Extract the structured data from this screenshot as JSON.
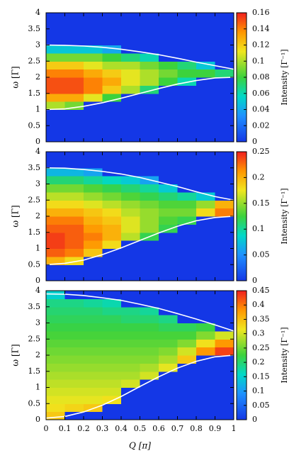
{
  "chart_data": [
    {
      "type": "heatmap",
      "x": [
        0.05,
        0.15,
        0.25,
        0.35,
        0.45,
        0.55,
        0.65,
        0.75,
        0.85,
        0.95
      ],
      "y": [
        0.125,
        0.375,
        0.625,
        0.875,
        1.125,
        1.375,
        1.625,
        1.875,
        2.125,
        2.375,
        2.625,
        2.875,
        3.125,
        3.375,
        3.625,
        3.875
      ],
      "values": [
        [
          0,
          0,
          0,
          0,
          0,
          0,
          0,
          0,
          0,
          0
        ],
        [
          0,
          0,
          0,
          0,
          0,
          0,
          0,
          0,
          0,
          0
        ],
        [
          0,
          0,
          0,
          0,
          0,
          0,
          0,
          0,
          0,
          0
        ],
        [
          0,
          0,
          0,
          0,
          0,
          0,
          0,
          0,
          0,
          0
        ],
        [
          0.1,
          0.09,
          0,
          0,
          0,
          0,
          0,
          0,
          0,
          0
        ],
        [
          0.13,
          0.13,
          0.11,
          0.08,
          0,
          0,
          0,
          0,
          0,
          0
        ],
        [
          0.15,
          0.15,
          0.14,
          0.12,
          0.1,
          0.07,
          0,
          0,
          0,
          0
        ],
        [
          0.15,
          0.15,
          0.14,
          0.13,
          0.11,
          0.1,
          0.08,
          0.06,
          0,
          0
        ],
        [
          0.14,
          0.14,
          0.13,
          0.12,
          0.11,
          0.1,
          0.09,
          0.08,
          0.08,
          0.07
        ],
        [
          0.12,
          0.12,
          0.11,
          0.1,
          0.1,
          0.09,
          0.08,
          0.07,
          0.05,
          0
        ],
        [
          0.09,
          0.09,
          0.09,
          0.08,
          0.07,
          0.06,
          0,
          0,
          0,
          0
        ],
        [
          0.05,
          0.05,
          0.05,
          0.04,
          0,
          0,
          0,
          0,
          0,
          0
        ],
        [
          0,
          0,
          0,
          0,
          0,
          0,
          0,
          0,
          0,
          0
        ],
        [
          0,
          0,
          0,
          0,
          0,
          0,
          0,
          0,
          0,
          0
        ],
        [
          0,
          0,
          0,
          0,
          0,
          0,
          0,
          0,
          0,
          0
        ],
        [
          0,
          0,
          0,
          0,
          0,
          0,
          0,
          0,
          0,
          0
        ]
      ],
      "xlim": [
        0,
        1
      ],
      "ylim": [
        0,
        4
      ],
      "yticks": [
        0,
        0.5,
        1,
        1.5,
        2,
        2.5,
        3,
        3.5,
        4
      ],
      "ylabel": "ω [Γ]",
      "clim": [
        0,
        0.16
      ],
      "cticks": [
        0,
        0.02,
        0.04,
        0.06,
        0.08,
        0.1,
        0.12,
        0.14,
        0.16
      ],
      "colorbar_label": "Intensity [Γ⁻¹]",
      "line_x": [
        0,
        0.1,
        0.2,
        0.3,
        0.4,
        0.5,
        0.6,
        0.7,
        0.8,
        0.9,
        1
      ],
      "lines": [
        {
          "color": "#ffffff",
          "values": [
            1,
            1.02,
            1.1,
            1.21,
            1.35,
            1.5,
            1.65,
            1.79,
            1.9,
            1.98,
            2
          ]
        },
        {
          "color": "#ffffff",
          "values": [
            3,
            2.99,
            2.97,
            2.93,
            2.87,
            2.79,
            2.7,
            2.59,
            2.47,
            2.36,
            2.25
          ]
        }
      ]
    },
    {
      "type": "heatmap",
      "x": [
        0.05,
        0.15,
        0.25,
        0.35,
        0.45,
        0.55,
        0.65,
        0.75,
        0.85,
        0.95
      ],
      "y": [
        0.125,
        0.375,
        0.625,
        0.875,
        1.125,
        1.375,
        1.625,
        1.875,
        2.125,
        2.375,
        2.625,
        2.875,
        3.125,
        3.375,
        3.625,
        3.875
      ],
      "values": [
        [
          0,
          0,
          0,
          0,
          0,
          0,
          0,
          0,
          0,
          0
        ],
        [
          0,
          0,
          0,
          0,
          0,
          0,
          0,
          0,
          0,
          0
        ],
        [
          0.2,
          0.18,
          0,
          0,
          0,
          0,
          0,
          0,
          0,
          0
        ],
        [
          0.23,
          0.22,
          0.19,
          0,
          0,
          0,
          0,
          0,
          0,
          0
        ],
        [
          0.24,
          0.23,
          0.21,
          0.18,
          0,
          0,
          0,
          0,
          0,
          0
        ],
        [
          0.24,
          0.23,
          0.22,
          0.2,
          0.16,
          0.12,
          0,
          0,
          0,
          0
        ],
        [
          0.23,
          0.23,
          0.21,
          0.2,
          0.17,
          0.15,
          0.12,
          0,
          0,
          0
        ],
        [
          0.22,
          0.22,
          0.2,
          0.19,
          0.17,
          0.15,
          0.13,
          0.12,
          0,
          0
        ],
        [
          0.2,
          0.2,
          0.19,
          0.18,
          0.16,
          0.15,
          0.14,
          0.14,
          0.18,
          0.22
        ],
        [
          0.18,
          0.18,
          0.17,
          0.16,
          0.15,
          0.14,
          0.13,
          0.13,
          0.15,
          0.2
        ],
        [
          0.16,
          0.16,
          0.15,
          0.14,
          0.13,
          0.12,
          0.11,
          0.1,
          0.08,
          0
        ],
        [
          0.14,
          0.14,
          0.13,
          0.12,
          0.11,
          0.1,
          0.08,
          0,
          0,
          0
        ],
        [
          0.11,
          0.11,
          0.1,
          0.09,
          0.08,
          0.06,
          0,
          0,
          0,
          0
        ],
        [
          0.07,
          0.07,
          0.06,
          0,
          0,
          0,
          0,
          0,
          0,
          0
        ],
        [
          0,
          0,
          0,
          0,
          0,
          0,
          0,
          0,
          0,
          0
        ],
        [
          0,
          0,
          0,
          0,
          0,
          0,
          0,
          0,
          0,
          0
        ]
      ],
      "xlim": [
        0,
        1
      ],
      "ylim": [
        0,
        4
      ],
      "yticks": [
        0,
        0.5,
        1,
        1.5,
        2,
        2.5,
        3,
        3.5,
        4
      ],
      "ylabel": "ω [Γ]",
      "clim": [
        0,
        0.25
      ],
      "cticks": [
        0,
        0.05,
        0.1,
        0.15,
        0.2,
        0.25
      ],
      "colorbar_label": "Intensity [Γ⁻¹]",
      "line_x": [
        0,
        0.1,
        0.2,
        0.3,
        0.4,
        0.5,
        0.6,
        0.7,
        0.8,
        0.9,
        1
      ],
      "lines": [
        {
          "color": "#ffffff",
          "values": [
            0.5,
            0.54,
            0.64,
            0.81,
            1.02,
            1.25,
            1.48,
            1.69,
            1.86,
            1.96,
            2
          ]
        },
        {
          "color": "#ffffff",
          "values": [
            3.5,
            3.49,
            3.45,
            3.39,
            3.31,
            3.2,
            3.06,
            2.92,
            2.76,
            2.61,
            2.5
          ]
        }
      ]
    },
    {
      "type": "heatmap",
      "x": [
        0.05,
        0.15,
        0.25,
        0.35,
        0.45,
        0.55,
        0.65,
        0.75,
        0.85,
        0.95
      ],
      "y": [
        0.125,
        0.375,
        0.625,
        0.875,
        1.125,
        1.375,
        1.625,
        1.875,
        2.125,
        2.375,
        2.625,
        2.875,
        3.125,
        3.375,
        3.625,
        3.875
      ],
      "values": [
        [
          0.34,
          0,
          0,
          0,
          0,
          0,
          0,
          0,
          0,
          0
        ],
        [
          0.32,
          0.33,
          0.34,
          0,
          0,
          0,
          0,
          0,
          0,
          0
        ],
        [
          0.31,
          0.31,
          0.31,
          0.32,
          0,
          0,
          0,
          0,
          0,
          0
        ],
        [
          0.3,
          0.3,
          0.3,
          0.3,
          0,
          0,
          0,
          0,
          0,
          0
        ],
        [
          0.29,
          0.29,
          0.29,
          0.29,
          0.3,
          0,
          0,
          0,
          0,
          0
        ],
        [
          0.28,
          0.28,
          0.28,
          0.28,
          0.28,
          0.3,
          0,
          0,
          0,
          0
        ],
        [
          0.27,
          0.27,
          0.27,
          0.27,
          0.27,
          0.28,
          0.31,
          0,
          0,
          0
        ],
        [
          0.26,
          0.26,
          0.26,
          0.26,
          0.26,
          0.26,
          0.28,
          0.34,
          0,
          0
        ],
        [
          0.25,
          0.25,
          0.25,
          0.25,
          0.25,
          0.25,
          0.26,
          0.3,
          0.38,
          0.43
        ],
        [
          0.24,
          0.24,
          0.24,
          0.24,
          0.24,
          0.24,
          0.24,
          0.26,
          0.32,
          0.38
        ],
        [
          0.23,
          0.23,
          0.23,
          0.23,
          0.23,
          0.23,
          0.23,
          0.23,
          0.26,
          0.3
        ],
        [
          0.22,
          0.22,
          0.22,
          0.22,
          0.22,
          0.22,
          0.21,
          0.21,
          0.22,
          0
        ],
        [
          0.21,
          0.21,
          0.21,
          0.21,
          0.2,
          0.2,
          0.19,
          0,
          0,
          0
        ],
        [
          0.2,
          0.2,
          0.2,
          0.19,
          0.19,
          0.18,
          0,
          0,
          0,
          0
        ],
        [
          0.19,
          0.19,
          0.18,
          0.17,
          0,
          0,
          0,
          0,
          0,
          0
        ],
        [
          0.15,
          0,
          0,
          0,
          0,
          0,
          0,
          0,
          0,
          0
        ]
      ],
      "xlim": [
        0,
        1
      ],
      "ylim": [
        0,
        4
      ],
      "xticks": [
        0,
        0.1,
        0.2,
        0.3,
        0.4,
        0.5,
        0.6,
        0.7,
        0.8,
        0.9,
        1
      ],
      "yticks": [
        0,
        0.5,
        1,
        1.5,
        2,
        2.5,
        3,
        3.5,
        4
      ],
      "xlabel": "Q [π]",
      "ylabel": "ω [Γ]",
      "clim": [
        0,
        0.45
      ],
      "cticks": [
        0,
        0.05,
        0.1,
        0.15,
        0.2,
        0.25,
        0.3,
        0.35,
        0.4,
        0.45
      ],
      "colorbar_label": "Intensity [Γ⁻¹]",
      "line_x": [
        0,
        0.1,
        0.2,
        0.3,
        0.4,
        0.5,
        0.6,
        0.7,
        0.8,
        0.9,
        1
      ],
      "lines": [
        {
          "color": "#ffffff",
          "values": [
            0.05,
            0.1,
            0.24,
            0.45,
            0.72,
            1.03,
            1.33,
            1.6,
            1.81,
            1.95,
            2
          ]
        },
        {
          "color": "#ffffff",
          "values": [
            3.9,
            3.89,
            3.85,
            3.78,
            3.7,
            3.58,
            3.45,
            3.29,
            3.12,
            2.94,
            2.75
          ]
        }
      ]
    }
  ]
}
